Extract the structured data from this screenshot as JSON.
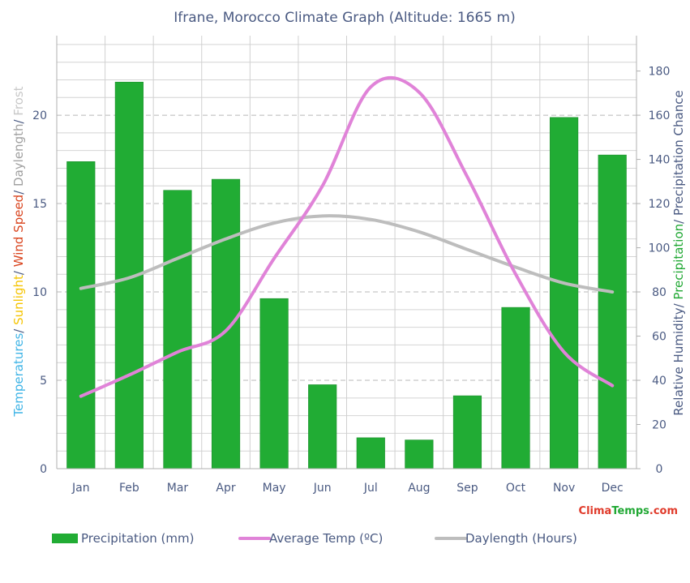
{
  "chart_data": {
    "type": "bar",
    "title": "Ifrane, Morocco Climate Graph (Altitude: 1665 m)",
    "categories": [
      "Jan",
      "Feb",
      "Mar",
      "Apr",
      "May",
      "Jun",
      "Jul",
      "Aug",
      "Sep",
      "Oct",
      "Nov",
      "Dec"
    ],
    "left_axis": {
      "label_parts": [
        {
          "text": "Temperatures",
          "color": "#3fb4e6"
        },
        {
          "text": "/ ",
          "color": "#4a5a82"
        },
        {
          "text": "Sunlight",
          "color": "#f5c400"
        },
        {
          "text": "/ ",
          "color": "#4a5a82"
        },
        {
          "text": "Wind Speed",
          "color": "#d9441e"
        },
        {
          "text": "/ ",
          "color": "#4a5a82"
        },
        {
          "text": "Daylength",
          "color": "#a0a0a0"
        },
        {
          "text": "/ ",
          "color": "#4a5a82"
        },
        {
          "text": "Frost",
          "color": "#c8c8c8"
        }
      ],
      "ylim": [
        0,
        24.5
      ],
      "ticks": [
        0,
        5,
        10,
        15,
        20
      ]
    },
    "right_axis": {
      "label_parts": [
        {
          "text": "Relative Humidity",
          "color": "#4a5a82"
        },
        {
          "text": "/ ",
          "color": "#4a5a82"
        },
        {
          "text": "Precipitation",
          "color": "#21a834"
        },
        {
          "text": "/ ",
          "color": "#4a5a82"
        },
        {
          "text": "Precipitation Chance",
          "color": "#4a5a82"
        }
      ],
      "ylim": [
        0,
        196
      ],
      "ticks": [
        0,
        20,
        40,
        60,
        80,
        100,
        120,
        140,
        160,
        180
      ]
    },
    "series": [
      {
        "name": "Precipitation (mm)",
        "kind": "bar",
        "axis": "right",
        "color": "#21ac34",
        "values": [
          139,
          175,
          126,
          131,
          77,
          38,
          14,
          13,
          33,
          73,
          159,
          142
        ]
      },
      {
        "name": "Average Temp (ºC)",
        "kind": "line",
        "axis": "left",
        "color": "#e083d8",
        "values": [
          4.1,
          5.3,
          6.6,
          7.8,
          11.9,
          16.0,
          21.6,
          21.3,
          16.5,
          11.0,
          6.6,
          4.7
        ]
      },
      {
        "name": "Daylength (Hours)",
        "kind": "line",
        "axis": "left",
        "color": "#bdbdbd",
        "values": [
          10.2,
          10.8,
          11.9,
          13.0,
          13.9,
          14.3,
          14.1,
          13.4,
          12.4,
          11.4,
          10.5,
          10.0
        ]
      }
    ],
    "grid": true,
    "legend_position": "bottom"
  },
  "brand": {
    "part1": "Clima",
    "part2": "Temps",
    "part3": ".com"
  }
}
